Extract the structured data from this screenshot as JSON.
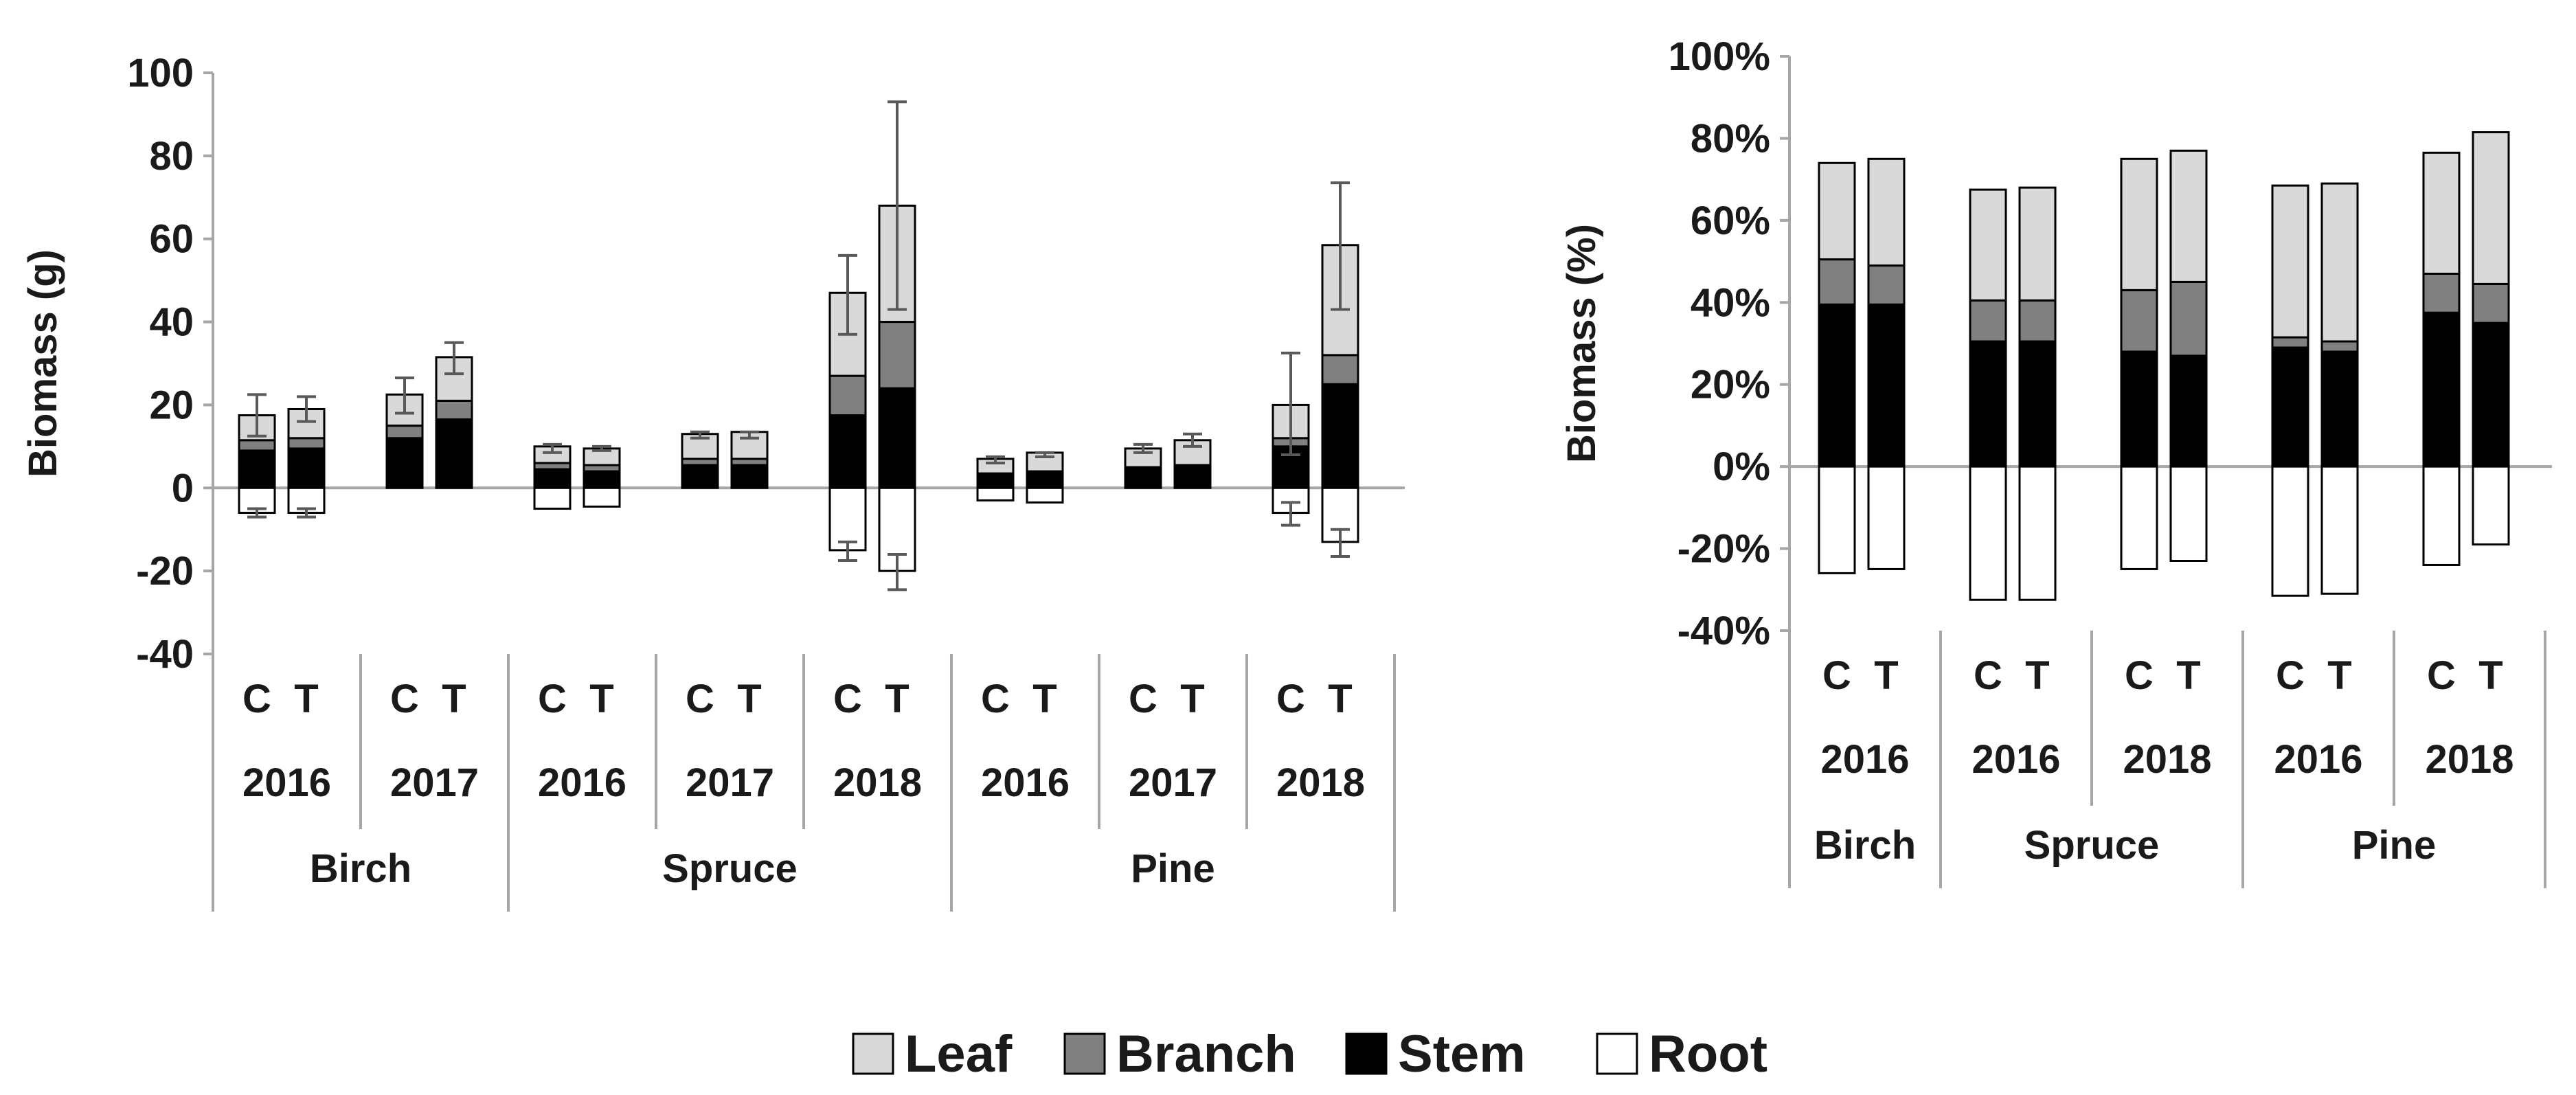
{
  "legend": {
    "items": [
      {
        "name": "Leaf",
        "color": "#d9d9d9"
      },
      {
        "name": "Branch",
        "color": "#808080"
      },
      {
        "name": "Stem",
        "color": "#000000"
      },
      {
        "name": "Root",
        "color": "#ffffff"
      }
    ]
  },
  "chart_data": [
    {
      "type": "bar",
      "stacked": true,
      "ylabel": "Biomass (g)",
      "ylim": [
        -40,
        100
      ],
      "yticks": [
        100,
        80,
        60,
        40,
        20,
        0,
        -20,
        -40
      ],
      "ytick_labels": [
        "100",
        "80",
        "60",
        "40",
        "20",
        "0",
        "-20",
        "-40"
      ],
      "categories": [
        {
          "species": "Birch",
          "year": "2016",
          "treatment": "C"
        },
        {
          "species": "Birch",
          "year": "2016",
          "treatment": "T"
        },
        {
          "species": "Birch",
          "year": "2017",
          "treatment": "C"
        },
        {
          "species": "Birch",
          "year": "2017",
          "treatment": "T"
        },
        {
          "species": "Spruce",
          "year": "2016",
          "treatment": "C"
        },
        {
          "species": "Spruce",
          "year": "2016",
          "treatment": "T"
        },
        {
          "species": "Spruce",
          "year": "2017",
          "treatment": "C"
        },
        {
          "species": "Spruce",
          "year": "2017",
          "treatment": "T"
        },
        {
          "species": "Spruce",
          "year": "2018",
          "treatment": "C"
        },
        {
          "species": "Spruce",
          "year": "2018",
          "treatment": "T"
        },
        {
          "species": "Pine",
          "year": "2016",
          "treatment": "C"
        },
        {
          "species": "Pine",
          "year": "2016",
          "treatment": "T"
        },
        {
          "species": "Pine",
          "year": "2017",
          "treatment": "C"
        },
        {
          "species": "Pine",
          "year": "2017",
          "treatment": "T"
        },
        {
          "species": "Pine",
          "year": "2018",
          "treatment": "C"
        },
        {
          "species": "Pine",
          "year": "2018",
          "treatment": "T"
        }
      ],
      "series": [
        {
          "name": "Stem",
          "values": [
            9,
            9.5,
            12,
            16.5,
            4.5,
            4,
            5.5,
            5.5,
            17.5,
            24,
            3,
            3.5,
            4.5,
            5,
            10,
            25
          ]
        },
        {
          "name": "Branch",
          "values": [
            2.5,
            2.5,
            3,
            4.5,
            1.5,
            1.5,
            1.5,
            1.5,
            9.5,
            16,
            0.5,
            0.5,
            0.5,
            0.5,
            2,
            7
          ]
        },
        {
          "name": "Leaf",
          "values": [
            6,
            7,
            7.5,
            10.5,
            4,
            4,
            6,
            6.5,
            20,
            28,
            3.5,
            4.5,
            4.5,
            6,
            8,
            26.5
          ]
        },
        {
          "name": "Root",
          "values": [
            -6,
            -6,
            0,
            0,
            -5,
            -4.5,
            0,
            0,
            -15,
            -20,
            -3,
            -3.5,
            0,
            0,
            -6,
            -13
          ]
        }
      ],
      "error_above": [
        22.5,
        22,
        26.5,
        35,
        10.5,
        10,
        13.5,
        13.5,
        56,
        93,
        7.5,
        8.5,
        10.5,
        13,
        32.5,
        73.5
      ],
      "error_below_top": [
        12.5,
        16,
        18,
        27.5,
        8.5,
        9,
        12,
        12,
        37,
        43,
        6,
        7.5,
        8.5,
        10,
        8,
        43
      ],
      "root_error": [
        -7,
        -7,
        null,
        null,
        null,
        null,
        null,
        null,
        -17.5,
        -24.5,
        null,
        null,
        null,
        null,
        -9,
        -16.5
      ],
      "root_error_short": [
        -5,
        -5,
        null,
        null,
        null,
        null,
        null,
        null,
        -13,
        -16,
        null,
        null,
        null,
        null,
        -3.5,
        -10
      ],
      "groups": [
        {
          "species": "Birch",
          "years": [
            "2016",
            "2017"
          ]
        },
        {
          "species": "Spruce",
          "years": [
            "2016",
            "2017",
            "2018"
          ]
        },
        {
          "species": "Pine",
          "years": [
            "2016",
            "2017",
            "2018"
          ]
        }
      ]
    },
    {
      "type": "bar",
      "stacked": true,
      "ylabel": "Biomass (%)",
      "ylim": [
        -40,
        100
      ],
      "yticks": [
        100,
        80,
        60,
        40,
        20,
        0,
        -20,
        -40
      ],
      "ytick_labels": [
        "100%",
        "80%",
        "60%",
        "40%",
        "20%",
        "0%",
        "-20%",
        "-40%"
      ],
      "categories": [
        {
          "species": "Birch",
          "year": "2016",
          "treatment": "C"
        },
        {
          "species": "Birch",
          "year": "2016",
          "treatment": "T"
        },
        {
          "species": "Spruce",
          "year": "2016",
          "treatment": "C"
        },
        {
          "species": "Spruce",
          "year": "2016",
          "treatment": "T"
        },
        {
          "species": "Spruce",
          "year": "2018",
          "treatment": "C"
        },
        {
          "species": "Spruce",
          "year": "2018",
          "treatment": "T"
        },
        {
          "species": "Pine",
          "year": "2016",
          "treatment": "C"
        },
        {
          "species": "Pine",
          "year": "2016",
          "treatment": "T"
        },
        {
          "species": "Pine",
          "year": "2018",
          "treatment": "C"
        },
        {
          "species": "Pine",
          "year": "2018",
          "treatment": "T"
        }
      ],
      "series": [
        {
          "name": "Stem",
          "values": [
            39.5,
            39.5,
            30.5,
            30.5,
            28,
            27,
            29,
            28,
            37.5,
            35
          ]
        },
        {
          "name": "Branch",
          "values": [
            11,
            9.5,
            10,
            10,
            15,
            18,
            2.5,
            2.5,
            9.5,
            9.5
          ]
        },
        {
          "name": "Leaf",
          "values": [
            23.5,
            26,
            27,
            27.5,
            32,
            32,
            37,
            38.5,
            29.5,
            37
          ]
        },
        {
          "name": "Root",
          "values": [
            -26,
            -25,
            -32.5,
            -32.5,
            -25,
            -23,
            -31.5,
            -31,
            -24,
            -19
          ]
        }
      ],
      "groups": [
        {
          "species": "Birch",
          "years": [
            "2016"
          ]
        },
        {
          "species": "Spruce",
          "years": [
            "2016",
            "2018"
          ]
        },
        {
          "species": "Pine",
          "years": [
            "2016",
            "2018"
          ]
        }
      ]
    }
  ]
}
